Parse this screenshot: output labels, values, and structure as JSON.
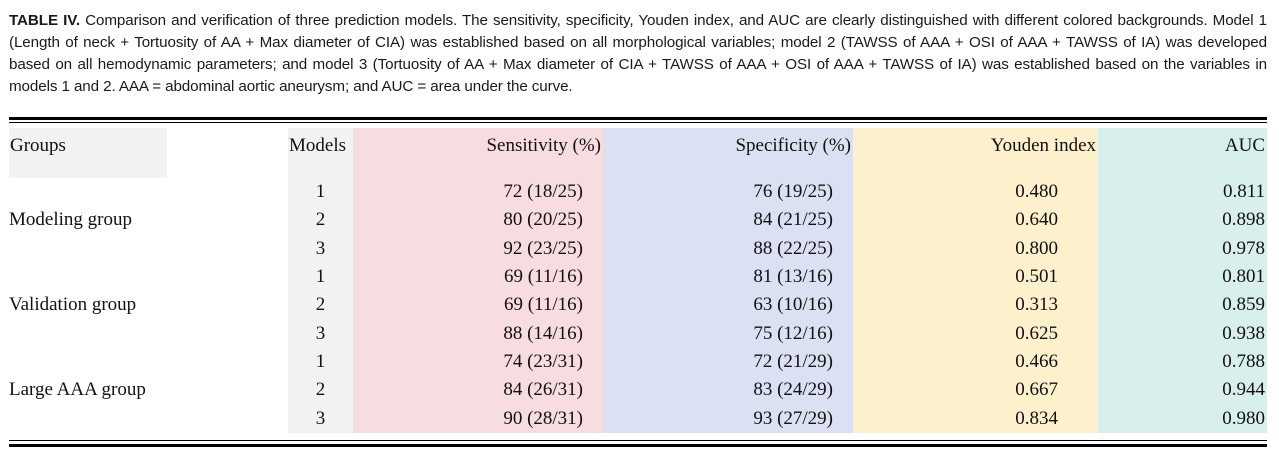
{
  "caption": {
    "label": "TABLE IV.",
    "text": " Comparison and verification of three prediction models. The sensitivity, specificity, Youden index, and AUC are clearly distinguished with different colored backgrounds. Model 1 (Length of neck + Tortuosity of AA + Max diameter of CIA) was established based on all morphological variables; model 2 (TAWSS of AAA + OSI of AAA + TAWSS of IA) was developed based on all hemodynamic parameters; and model 3 (Tortuosity of AA + Max diameter of CIA + TAWSS of AAA + OSI of AAA + TAWSS of IA) was established based on the variables in models 1 and 2. AAA = abdominal aortic aneurysm; and AUC = area under the curve."
  },
  "headers": {
    "groups": "Groups",
    "models": "Models",
    "sensitivity": "Sensitivity (%)",
    "specificity": "Specificity (%)",
    "youden": "Youden index",
    "auc": "AUC"
  },
  "colors": {
    "sensitivity_bg": "#f7dce0",
    "specificity_bg": "#dbe1f2",
    "youden_bg": "#fdf0cd",
    "auc_bg": "#d8efed",
    "neutral_bg": "#f2f2f2"
  },
  "groups": [
    {
      "name": "Modeling group",
      "rows": [
        {
          "model": "1",
          "sensitivity": "72 (18/25)",
          "specificity": "76 (19/25)",
          "youden": "0.480",
          "auc": "0.811"
        },
        {
          "model": "2",
          "sensitivity": "80 (20/25)",
          "specificity": "84 (21/25)",
          "youden": "0.640",
          "auc": "0.898"
        },
        {
          "model": "3",
          "sensitivity": "92 (23/25)",
          "specificity": "88 (22/25)",
          "youden": "0.800",
          "auc": "0.978"
        }
      ]
    },
    {
      "name": "Validation group",
      "rows": [
        {
          "model": "1",
          "sensitivity": "69 (11/16)",
          "specificity": "81 (13/16)",
          "youden": "0.501",
          "auc": "0.801"
        },
        {
          "model": "2",
          "sensitivity": "69 (11/16)",
          "specificity": "63 (10/16)",
          "youden": "0.313",
          "auc": "0.859"
        },
        {
          "model": "3",
          "sensitivity": "88 (14/16)",
          "specificity": "75 (12/16)",
          "youden": "0.625",
          "auc": "0.938"
        }
      ]
    },
    {
      "name": "Large AAA group",
      "rows": [
        {
          "model": "1",
          "sensitivity": "74 (23/31)",
          "specificity": "72 (21/29)",
          "youden": "0.466",
          "auc": "0.788"
        },
        {
          "model": "2",
          "sensitivity": "84 (26/31)",
          "specificity": "83 (24/29)",
          "youden": "0.667",
          "auc": "0.944"
        },
        {
          "model": "3",
          "sensitivity": "90 (28/31)",
          "specificity": "93 (27/29)",
          "youden": "0.834",
          "auc": "0.980"
        }
      ]
    }
  ]
}
